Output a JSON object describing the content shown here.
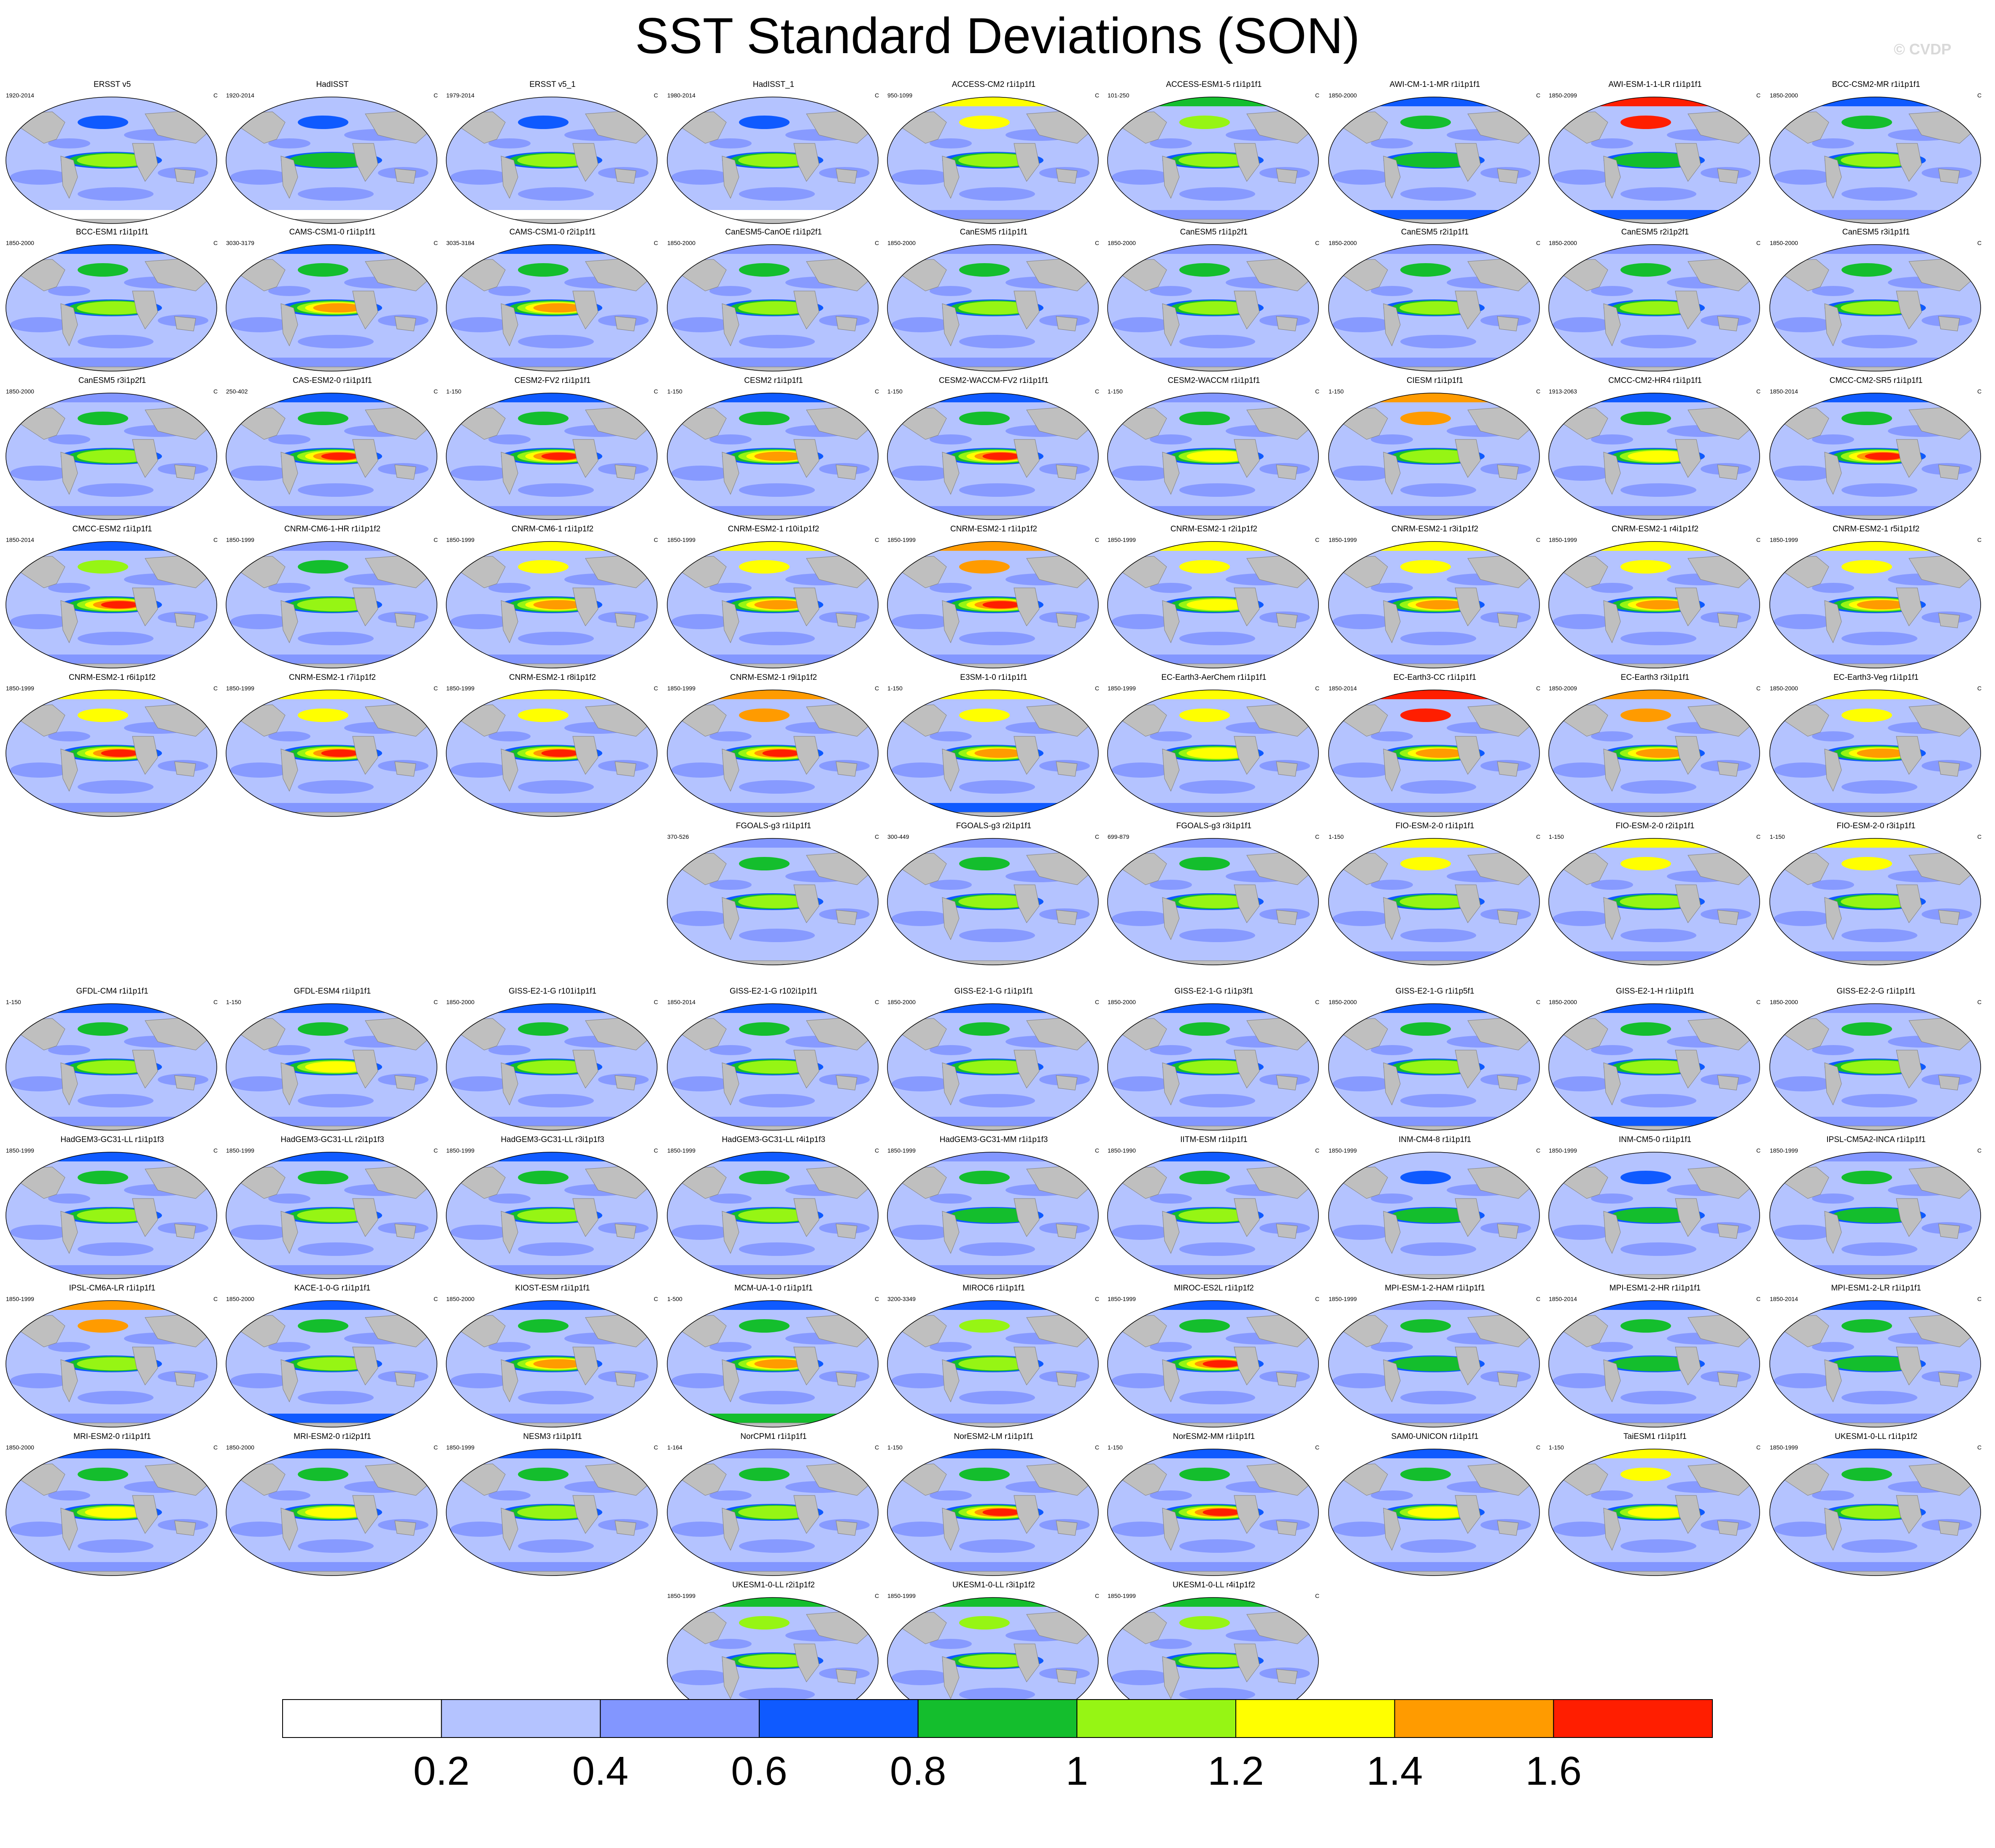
{
  "title": "SST Standard Deviations (SON)",
  "watermark": "© CVDP",
  "unit": "C",
  "colors": {
    "land": "#bfbfbf",
    "levels": [
      "#ffffff",
      "#b4c3ff",
      "#8296ff",
      "#0f5aff",
      "#14be2d",
      "#96f514",
      "#ffff00",
      "#ff9b00",
      "#ff1e00"
    ]
  },
  "chart_data": {
    "type": "heatmap",
    "title": "SST Standard Deviations (SON)",
    "colorbar": {
      "ticks": [
        "0.2",
        "0.4",
        "0.6",
        "0.8",
        "1",
        "1.2",
        "1.4",
        "1.6"
      ],
      "levels": [
        0.2,
        0.4,
        0.6,
        0.8,
        1.0,
        1.2,
        1.4,
        1.6
      ],
      "colors": [
        "#ffffff",
        "#b4c3ff",
        "#8296ff",
        "#0f5aff",
        "#14be2d",
        "#96f514",
        "#ffff00",
        "#ff9b00",
        "#ff1e00"
      ]
    },
    "panels": [
      {
        "row": 0,
        "col": 0,
        "title": "ERSST v5",
        "years": "1920-2014",
        "enso": 1.0,
        "north": 0.6,
        "south": 0.1
      },
      {
        "row": 0,
        "col": 1,
        "title": "HadISST",
        "years": "1920-2014",
        "enso": 0.95,
        "north": 0.6,
        "south": 0.1
      },
      {
        "row": 0,
        "col": 2,
        "title": "ERSST v5_1",
        "years": "1979-2014",
        "enso": 1.1,
        "north": 0.6,
        "south": 0.1
      },
      {
        "row": 0,
        "col": 3,
        "title": "HadISST_1",
        "years": "1980-2014",
        "enso": 1.1,
        "north": 0.6,
        "south": 0.1
      },
      {
        "row": 0,
        "col": 4,
        "title": "ACCESS-CM2 r1i1p1f1",
        "years": "950-1099",
        "enso": 1.0,
        "north": 1.2,
        "south": 0.5
      },
      {
        "row": 0,
        "col": 5,
        "title": "ACCESS-ESM1-5 r1i1p1f1",
        "years": "101-250",
        "enso": 1.0,
        "north": 1.1,
        "south": 0.5
      },
      {
        "row": 0,
        "col": 6,
        "title": "AWI-CM-1-1-MR r1i1p1f1",
        "years": "1850-2000",
        "enso": 0.9,
        "north": 0.9,
        "south": 0.6
      },
      {
        "row": 0,
        "col": 7,
        "title": "AWI-ESM-1-1-LR r1i1p1f1",
        "years": "1850-2099",
        "enso": 0.9,
        "north": 1.7,
        "south": 0.6
      },
      {
        "row": 0,
        "col": 8,
        "title": "BCC-CSM2-MR r1i1p1f1",
        "years": "1850-2000",
        "enso": 1.0,
        "north": 0.9,
        "south": 0.5
      },
      {
        "row": 1,
        "col": 0,
        "title": "BCC-ESM1 r1i1p1f1",
        "years": "1850-2000",
        "enso": 1.0,
        "north": 0.9,
        "south": 0.5
      },
      {
        "row": 1,
        "col": 1,
        "title": "CAMS-CSM1-0 r1i1p1f1",
        "years": "3030-3179",
        "enso": 1.4,
        "north": 0.9,
        "south": 0.5
      },
      {
        "row": 1,
        "col": 2,
        "title": "CAMS-CSM1-0 r2i1p1f1",
        "years": "3035-3184",
        "enso": 1.4,
        "north": 0.9,
        "south": 0.5
      },
      {
        "row": 1,
        "col": 3,
        "title": "CanESM5-CanOE r1i1p2f1",
        "years": "1850-2000",
        "enso": 1.0,
        "north": 0.8,
        "south": 0.5
      },
      {
        "row": 1,
        "col": 4,
        "title": "CanESM5 r1i1p1f1",
        "years": "1850-2000",
        "enso": 1.0,
        "north": 0.8,
        "south": 0.5
      },
      {
        "row": 1,
        "col": 5,
        "title": "CanESM5 r1i1p2f1",
        "years": "1850-2000",
        "enso": 1.0,
        "north": 0.8,
        "south": 0.5
      },
      {
        "row": 1,
        "col": 6,
        "title": "CanESM5 r2i1p1f1",
        "years": "1850-2000",
        "enso": 1.0,
        "north": 0.8,
        "south": 0.5
      },
      {
        "row": 1,
        "col": 7,
        "title": "CanESM5 r2i1p2f1",
        "years": "1850-2000",
        "enso": 1.0,
        "north": 0.8,
        "south": 0.5
      },
      {
        "row": 1,
        "col": 8,
        "title": "CanESM5 r3i1p1f1",
        "years": "1850-2000",
        "enso": 1.0,
        "north": 0.8,
        "south": 0.5
      },
      {
        "row": 2,
        "col": 0,
        "title": "CanESM5 r3i1p2f1",
        "years": "1850-2000",
        "enso": 1.0,
        "north": 0.8,
        "south": 0.5
      },
      {
        "row": 2,
        "col": 1,
        "title": "CAS-ESM2-0 r1i1p1f1",
        "years": "250-402",
        "enso": 1.7,
        "north": 0.9,
        "south": 0.5
      },
      {
        "row": 2,
        "col": 2,
        "title": "CESM2-FV2 r1i1p1f1",
        "years": "1-150",
        "enso": 1.7,
        "north": 0.9,
        "south": 0.5
      },
      {
        "row": 2,
        "col": 3,
        "title": "CESM2 r1i1p1f1",
        "years": "1-150",
        "enso": 1.5,
        "north": 0.9,
        "south": 0.5
      },
      {
        "row": 2,
        "col": 4,
        "title": "CESM2-WACCM-FV2 r1i1p1f1",
        "years": "1-150",
        "enso": 1.7,
        "north": 0.9,
        "south": 0.5
      },
      {
        "row": 2,
        "col": 5,
        "title": "CESM2-WACCM r1i1p1f1",
        "years": "1-150",
        "enso": 1.2,
        "north": 0.8,
        "south": 0.5
      },
      {
        "row": 2,
        "col": 6,
        "title": "CIESM r1i1p1f1",
        "years": "1-150",
        "enso": 1.1,
        "north": 1.5,
        "south": 0.5
      },
      {
        "row": 2,
        "col": 7,
        "title": "CMCC-CM2-HR4 r1i1p1f1",
        "years": "1913-2063",
        "enso": 1.3,
        "north": 0.9,
        "south": 0.5
      },
      {
        "row": 2,
        "col": 8,
        "title": "CMCC-CM2-SR5 r1i1p1f1",
        "years": "1850-2014",
        "enso": 1.7,
        "north": 0.9,
        "south": 0.5
      },
      {
        "row": 3,
        "col": 0,
        "title": "CMCC-ESM2 r1i1p1f1",
        "years": "1850-2014",
        "enso": 1.7,
        "north": 1.0,
        "south": 0.5
      },
      {
        "row": 3,
        "col": 1,
        "title": "CNRM-CM6-1-HR r1i1p1f2",
        "years": "1850-1999",
        "enso": 1.0,
        "north": 0.8,
        "south": 0.5
      },
      {
        "row": 3,
        "col": 2,
        "title": "CNRM-CM6-1 r1i1p1f2",
        "years": "1850-1999",
        "enso": 1.4,
        "north": 1.2,
        "south": 0.5
      },
      {
        "row": 3,
        "col": 3,
        "title": "CNRM-ESM2-1 r10i1p1f2",
        "years": "1850-1999",
        "enso": 1.4,
        "north": 1.2,
        "south": 0.5
      },
      {
        "row": 3,
        "col": 4,
        "title": "CNRM-ESM2-1 r1i1p1f2",
        "years": "1850-1999",
        "enso": 1.6,
        "north": 1.4,
        "south": 0.5
      },
      {
        "row": 3,
        "col": 5,
        "title": "CNRM-ESM2-1 r2i1p1f2",
        "years": "1850-1999",
        "enso": 1.3,
        "north": 1.2,
        "south": 0.5
      },
      {
        "row": 3,
        "col": 6,
        "title": "CNRM-ESM2-1 r3i1p1f2",
        "years": "1850-1999",
        "enso": 1.4,
        "north": 1.2,
        "south": 0.5
      },
      {
        "row": 3,
        "col": 7,
        "title": "CNRM-ESM2-1 r4i1p1f2",
        "years": "1850-1999",
        "enso": 1.4,
        "north": 1.2,
        "south": 0.5
      },
      {
        "row": 3,
        "col": 8,
        "title": "CNRM-ESM2-1 r5i1p1f2",
        "years": "1850-1999",
        "enso": 1.4,
        "north": 1.2,
        "south": 0.5
      },
      {
        "row": 4,
        "col": 0,
        "title": "CNRM-ESM2-1 r6i1p1f2",
        "years": "1850-1999",
        "enso": 1.6,
        "north": 1.3,
        "south": 0.5
      },
      {
        "row": 4,
        "col": 1,
        "title": "CNRM-ESM2-1 r7i1p1f2",
        "years": "1850-1999",
        "enso": 1.6,
        "north": 1.2,
        "south": 0.5
      },
      {
        "row": 4,
        "col": 2,
        "title": "CNRM-ESM2-1 r8i1p1f2",
        "years": "1850-1999",
        "enso": 1.6,
        "north": 1.2,
        "south": 0.5
      },
      {
        "row": 4,
        "col": 3,
        "title": "CNRM-ESM2-1 r9i1p1f2",
        "years": "1850-1999",
        "enso": 1.6,
        "north": 1.4,
        "south": 0.5
      },
      {
        "row": 4,
        "col": 4,
        "title": "E3SM-1-0 r1i1p1f1",
        "years": "1-150",
        "enso": 1.4,
        "north": 1.2,
        "south": 0.6
      },
      {
        "row": 4,
        "col": 5,
        "title": "EC-Earth3-AerChem r1i1p1f1",
        "years": "1850-1999",
        "enso": 1.3,
        "north": 1.2,
        "south": 0.5
      },
      {
        "row": 4,
        "col": 6,
        "title": "EC-Earth3-CC r1i1p1f1",
        "years": "1850-2014",
        "enso": 1.4,
        "north": 1.7,
        "south": 0.5
      },
      {
        "row": 4,
        "col": 7,
        "title": "EC-Earth3 r3i1p1f1",
        "years": "1850-2009",
        "enso": 1.5,
        "north": 1.5,
        "south": 0.5
      },
      {
        "row": 4,
        "col": 8,
        "title": "EC-Earth3-Veg r1i1p1f1",
        "years": "1850-2000",
        "enso": 1.4,
        "north": 1.3,
        "south": 0.5
      },
      {
        "row": 5,
        "col": 3,
        "title": "FGOALS-g3 r1i1p1f1",
        "years": "370-526",
        "enso": 1.1,
        "north": 0.8,
        "south": 0.3
      },
      {
        "row": 5,
        "col": 4,
        "title": "FGOALS-g3 r2i1p1f1",
        "years": "300-449",
        "enso": 1.1,
        "north": 0.8,
        "south": 0.3
      },
      {
        "row": 5,
        "col": 5,
        "title": "FGOALS-g3 r3i1p1f1",
        "years": "699-879",
        "enso": 1.1,
        "north": 0.8,
        "south": 0.3
      },
      {
        "row": 5,
        "col": 6,
        "title": "FIO-ESM-2-0 r1i1p1f1",
        "years": "1-150",
        "enso": 1.1,
        "north": 1.2,
        "south": 0.4
      },
      {
        "row": 5,
        "col": 7,
        "title": "FIO-ESM-2-0 r2i1p1f1",
        "years": "1-150",
        "enso": 1.1,
        "north": 1.2,
        "south": 0.4
      },
      {
        "row": 5,
        "col": 8,
        "title": "FIO-ESM-2-0 r3i1p1f1",
        "years": "1-150",
        "enso": 1.1,
        "north": 1.2,
        "south": 0.4
      },
      {
        "row": 6,
        "col": 0,
        "title": "GFDL-CM4 r1i1p1f1",
        "years": "1-150",
        "enso": 1.0,
        "north": 0.9,
        "south": 0.5
      },
      {
        "row": 6,
        "col": 1,
        "title": "GFDL-ESM4 r1i1p1f1",
        "years": "1-150",
        "enso": 1.2,
        "north": 0.9,
        "south": 0.5
      },
      {
        "row": 6,
        "col": 2,
        "title": "GISS-E2-1-G r101i1p1f1",
        "years": "1850-2000",
        "enso": 1.0,
        "north": 0.9,
        "south": 0.5
      },
      {
        "row": 6,
        "col": 3,
        "title": "GISS-E2-1-G r102i1p1f1",
        "years": "1850-2014",
        "enso": 1.0,
        "north": 0.9,
        "south": 0.5
      },
      {
        "row": 6,
        "col": 4,
        "title": "GISS-E2-1-G r1i1p1f1",
        "years": "1850-2000",
        "enso": 1.0,
        "north": 0.9,
        "south": 0.5
      },
      {
        "row": 6,
        "col": 5,
        "title": "GISS-E2-1-G r1i1p3f1",
        "years": "1850-2000",
        "enso": 1.0,
        "north": 0.9,
        "south": 0.5
      },
      {
        "row": 6,
        "col": 6,
        "title": "GISS-E2-1-G r1i1p5f1",
        "years": "1850-2000",
        "enso": 1.0,
        "north": 0.9,
        "south": 0.5
      },
      {
        "row": 6,
        "col": 7,
        "title": "GISS-E2-1-H r1i1p1f1",
        "years": "1850-2000",
        "enso": 1.1,
        "north": 0.9,
        "south": 0.6
      },
      {
        "row": 6,
        "col": 8,
        "title": "GISS-E2-2-G r1i1p1f1",
        "years": "1850-2000",
        "enso": 1.0,
        "north": 0.8,
        "south": 0.5
      },
      {
        "row": 7,
        "col": 0,
        "title": "HadGEM3-GC31-LL r1i1p1f3",
        "years": "1850-1999",
        "enso": 1.1,
        "north": 0.9,
        "south": 0.5
      },
      {
        "row": 7,
        "col": 1,
        "title": "HadGEM3-GC31-LL r2i1p1f3",
        "years": "1850-1999",
        "enso": 1.1,
        "north": 0.9,
        "south": 0.5
      },
      {
        "row": 7,
        "col": 2,
        "title": "HadGEM3-GC31-LL r3i1p1f3",
        "years": "1850-1999",
        "enso": 1.1,
        "north": 0.9,
        "south": 0.5
      },
      {
        "row": 7,
        "col": 3,
        "title": "HadGEM3-GC31-LL r4i1p1f3",
        "years": "1850-1999",
        "enso": 1.1,
        "north": 0.9,
        "south": 0.5
      },
      {
        "row": 7,
        "col": 4,
        "title": "HadGEM3-GC31-MM r1i1p1f3",
        "years": "1850-1999",
        "enso": 0.9,
        "north": 0.8,
        "south": 0.5
      },
      {
        "row": 7,
        "col": 5,
        "title": "IITM-ESM r1i1p1f1",
        "years": "1850-1990",
        "enso": 1.0,
        "north": 0.9,
        "south": 0.5
      },
      {
        "row": 7,
        "col": 6,
        "title": "INM-CM4-8 r1i1p1f1",
        "years": "1850-1999",
        "enso": 0.8,
        "north": 0.7,
        "south": 0.3
      },
      {
        "row": 7,
        "col": 7,
        "title": "INM-CM5-0 r1i1p1f1",
        "years": "1850-1999",
        "enso": 0.8,
        "north": 0.7,
        "south": 0.3
      },
      {
        "row": 7,
        "col": 8,
        "title": "IPSL-CM5A2-INCA r1i1p1f1",
        "years": "1850-1999",
        "enso": 0.9,
        "north": 0.8,
        "south": 0.5
      },
      {
        "row": 8,
        "col": 0,
        "title": "IPSL-CM6A-LR r1i1p1f1",
        "years": "1850-1999",
        "enso": 1.1,
        "north": 1.5,
        "south": 0.5
      },
      {
        "row": 8,
        "col": 1,
        "title": "KACE-1-0-G r1i1p1f1",
        "years": "1850-2000",
        "enso": 1.1,
        "north": 0.9,
        "south": 0.6
      },
      {
        "row": 8,
        "col": 2,
        "title": "KIOST-ESM r1i1p1f1",
        "years": "1850-2000",
        "enso": 1.4,
        "north": 0.9,
        "south": 0.5
      },
      {
        "row": 8,
        "col": 3,
        "title": "MCM-UA-1-0 r1i1p1f1",
        "years": "1-500",
        "enso": 1.5,
        "north": 0.9,
        "south": 0.9
      },
      {
        "row": 8,
        "col": 4,
        "title": "MIROC6 r1i1p1f1",
        "years": "3200-3349",
        "enso": 1.1,
        "north": 1.0,
        "south": 0.5
      },
      {
        "row": 8,
        "col": 5,
        "title": "MIROC-ES2L r1i1p1f2",
        "years": "1850-1999",
        "enso": 1.6,
        "north": 0.9,
        "south": 0.5
      },
      {
        "row": 8,
        "col": 6,
        "title": "MPI-ESM-1-2-HAM r1i1p1f1",
        "years": "1850-1999",
        "enso": 0.9,
        "north": 0.8,
        "south": 0.5
      },
      {
        "row": 8,
        "col": 7,
        "title": "MPI-ESM1-2-HR r1i1p1f1",
        "years": "1850-2014",
        "enso": 0.9,
        "north": 0.9,
        "south": 0.5
      },
      {
        "row": 8,
        "col": 8,
        "title": "MPI-ESM1-2-LR r1i1p1f1",
        "years": "1850-2014",
        "enso": 0.9,
        "north": 0.9,
        "south": 0.5
      },
      {
        "row": 9,
        "col": 0,
        "title": "MRI-ESM2-0 r1i1p1f1",
        "years": "1850-2000",
        "enso": 1.3,
        "north": 0.9,
        "south": 0.5
      },
      {
        "row": 9,
        "col": 1,
        "title": "MRI-ESM2-0 r1i2p1f1",
        "years": "1850-2000",
        "enso": 1.3,
        "north": 0.9,
        "south": 0.5
      },
      {
        "row": 9,
        "col": 2,
        "title": "NESM3 r1i1p1f1",
        "years": "1850-1999",
        "enso": 1.0,
        "north": 0.9,
        "south": 0.5
      },
      {
        "row": 9,
        "col": 3,
        "title": "NorCPM1 r1i1p1f1",
        "years": "1-164",
        "enso": 1.1,
        "north": 0.8,
        "south": 0.5
      },
      {
        "row": 9,
        "col": 4,
        "title": "NorESM2-LM r1i1p1f1",
        "years": "1-150",
        "enso": 1.7,
        "north": 0.9,
        "south": 0.5
      },
      {
        "row": 9,
        "col": 5,
        "title": "NorESM2-MM r1i1p1f1",
        "years": "1-150",
        "enso": 1.7,
        "north": 0.9,
        "south": 0.5
      },
      {
        "row": 9,
        "col": 6,
        "title": "SAM0-UNICON r1i1p1f1",
        "years": "",
        "enso": 1.2,
        "north": 0.9,
        "south": 0.5
      },
      {
        "row": 9,
        "col": 7,
        "title": "TaiESM1 r1i1p1f1",
        "years": "1-150",
        "enso": 1.3,
        "north": 1.2,
        "south": 0.5
      },
      {
        "row": 9,
        "col": 8,
        "title": "UKESM1-0-LL r1i1p1f2",
        "years": "1850-1999",
        "enso": 1.1,
        "north": 0.9,
        "south": 0.5
      },
      {
        "row": 10,
        "col": 3,
        "title": "UKESM1-0-LL r2i1p1f2",
        "years": "1850-1999",
        "enso": 1.1,
        "north": 1.1,
        "south": 0.5
      },
      {
        "row": 10,
        "col": 4,
        "title": "UKESM1-0-LL r3i1p1f2",
        "years": "1850-1999",
        "enso": 1.1,
        "north": 1.1,
        "south": 0.5
      },
      {
        "row": 10,
        "col": 5,
        "title": "UKESM1-0-LL r4i1p1f2",
        "years": "1850-1999",
        "enso": 1.1,
        "north": 1.1,
        "south": 0.5
      }
    ]
  }
}
